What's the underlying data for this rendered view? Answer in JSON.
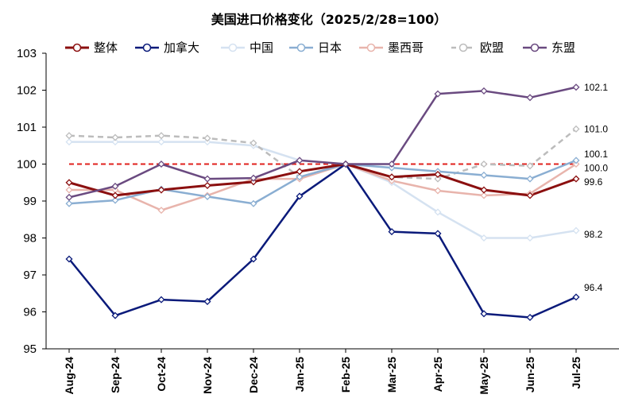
{
  "chart_data": {
    "type": "line",
    "title": "美国进口价格变化（2025/2/28=100）",
    "xlabel": "",
    "ylabel": "",
    "ylim": [
      95,
      103
    ],
    "yticks": [
      95,
      96,
      97,
      98,
      99,
      100,
      101,
      102,
      103
    ],
    "categories": [
      "Aug-24",
      "Sep-24",
      "Oct-24",
      "Nov-24",
      "Dec-24",
      "Jan-25",
      "Feb-25",
      "Mar-25",
      "Apr-25",
      "May-25",
      "Jun-25",
      "Jul-25"
    ],
    "reference_line": {
      "value": 100,
      "color": "#e0201c",
      "style": "dashed"
    },
    "legend_position": "top",
    "series": [
      {
        "name": "整体",
        "color": "#8b0f0f",
        "dashed": false,
        "width": 3,
        "values": [
          99.5,
          99.15,
          99.3,
          99.42,
          99.52,
          99.8,
          100.0,
          99.65,
          99.72,
          99.3,
          99.15,
          99.6
        ]
      },
      {
        "name": "加拿大",
        "color": "#0a1a7a",
        "dashed": false,
        "width": 2.5,
        "values": [
          97.43,
          95.9,
          96.33,
          96.28,
          97.43,
          99.13,
          100.0,
          98.17,
          98.12,
          95.95,
          95.85,
          96.4
        ]
      },
      {
        "name": "中国",
        "color": "#d5e2f1",
        "dashed": false,
        "width": 2.5,
        "values": [
          100.6,
          100.6,
          100.6,
          100.6,
          100.5,
          100.1,
          100.0,
          99.5,
          98.7,
          98.0,
          98.0,
          98.2
        ]
      },
      {
        "name": "日本",
        "color": "#8aaed2",
        "dashed": false,
        "width": 2.5,
        "values": [
          98.93,
          99.02,
          99.32,
          99.12,
          98.93,
          99.65,
          100.0,
          99.9,
          99.8,
          99.7,
          99.6,
          100.1
        ]
      },
      {
        "name": "墨西哥",
        "color": "#e8b4ac",
        "dashed": false,
        "width": 2.5,
        "values": [
          99.3,
          99.3,
          98.75,
          99.15,
          99.6,
          99.6,
          100.0,
          99.55,
          99.28,
          99.15,
          99.2,
          100.0
        ]
      },
      {
        "name": "欧盟",
        "color": "#bcbcbc",
        "dashed": true,
        "width": 2.5,
        "values": [
          100.77,
          100.72,
          100.77,
          100.7,
          100.57,
          99.65,
          100.0,
          99.65,
          99.6,
          100.0,
          99.95,
          100.95
        ]
      },
      {
        "name": "东盟",
        "color": "#6a4a80",
        "dashed": false,
        "width": 2.5,
        "values": [
          99.1,
          99.4,
          100.0,
          99.6,
          99.62,
          100.1,
          100.0,
          100.0,
          101.9,
          101.98,
          101.8,
          102.08
        ]
      }
    ],
    "end_labels": [
      {
        "series": "东盟",
        "text": "102.1"
      },
      {
        "series": "欧盟",
        "text": "101.0"
      },
      {
        "series": "日本",
        "text": "100.1"
      },
      {
        "series": "墨西哥",
        "text": "100.0"
      },
      {
        "series": "整体",
        "text": "99.6"
      },
      {
        "series": "中国",
        "text": "98.2"
      },
      {
        "series": "加拿大",
        "text": "96.4"
      }
    ]
  }
}
